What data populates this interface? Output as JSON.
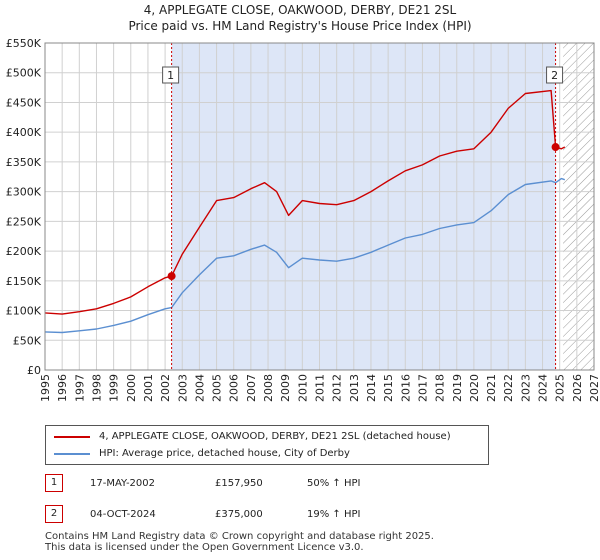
{
  "chart_data": {
    "type": "line",
    "title": "4, APPLEGATE CLOSE, OAKWOOD, DERBY, DE21 2SL",
    "subtitle": "Price paid vs. HM Land Registry's House Price Index (HPI)",
    "xlim": [
      1995,
      2027
    ],
    "ylim": [
      0,
      550000
    ],
    "x_ticks": [
      1995,
      1996,
      1997,
      1998,
      1999,
      2000,
      2001,
      2002,
      2003,
      2004,
      2005,
      2006,
      2007,
      2008,
      2009,
      2010,
      2011,
      2012,
      2013,
      2014,
      2015,
      2016,
      2017,
      2018,
      2019,
      2020,
      2021,
      2022,
      2023,
      2024,
      2025,
      2026,
      2027
    ],
    "y_ticks": [
      0,
      50000,
      100000,
      150000,
      200000,
      250000,
      300000,
      350000,
      400000,
      450000,
      500000,
      550000
    ],
    "y_tick_labels": [
      "£0",
      "£50K",
      "£100K",
      "£150K",
      "£200K",
      "£250K",
      "£300K",
      "£350K",
      "£400K",
      "£450K",
      "£500K",
      "£550K"
    ],
    "shaded_region": [
      2002.38,
      2024.76
    ],
    "future_hatch_start": 2025.2,
    "series": [
      {
        "name": "4, APPLEGATE CLOSE, OAKWOOD, DERBY, DE21 2SL (detached house)",
        "color": "#cc0000",
        "points": [
          [
            1995,
            96000
          ],
          [
            1996,
            94000
          ],
          [
            1997,
            98000
          ],
          [
            1998,
            103000
          ],
          [
            1999,
            112000
          ],
          [
            2000,
            123000
          ],
          [
            2001,
            140000
          ],
          [
            2002,
            155000
          ],
          [
            2002.38,
            157950
          ],
          [
            2003,
            195000
          ],
          [
            2004,
            240000
          ],
          [
            2005,
            285000
          ],
          [
            2006,
            290000
          ],
          [
            2007,
            305000
          ],
          [
            2007.8,
            315000
          ],
          [
            2008.5,
            300000
          ],
          [
            2009.2,
            260000
          ],
          [
            2010,
            285000
          ],
          [
            2011,
            280000
          ],
          [
            2012,
            278000
          ],
          [
            2013,
            285000
          ],
          [
            2014,
            300000
          ],
          [
            2015,
            318000
          ],
          [
            2016,
            335000
          ],
          [
            2017,
            345000
          ],
          [
            2018,
            360000
          ],
          [
            2019,
            368000
          ],
          [
            2020,
            372000
          ],
          [
            2021,
            400000
          ],
          [
            2022,
            440000
          ],
          [
            2023,
            465000
          ],
          [
            2024.5,
            470000
          ],
          [
            2024.76,
            375000
          ],
          [
            2025.1,
            372000
          ],
          [
            2025.3,
            375000
          ]
        ]
      },
      {
        "name": "HPI: Average price, detached house, City of Derby",
        "color": "#5b8fd1",
        "points": [
          [
            1995,
            64000
          ],
          [
            1996,
            63000
          ],
          [
            1997,
            66000
          ],
          [
            1998,
            69000
          ],
          [
            1999,
            75000
          ],
          [
            2000,
            82000
          ],
          [
            2001,
            93000
          ],
          [
            2002,
            103000
          ],
          [
            2002.38,
            105000
          ],
          [
            2003,
            130000
          ],
          [
            2004,
            160000
          ],
          [
            2005,
            188000
          ],
          [
            2006,
            192000
          ],
          [
            2007,
            203000
          ],
          [
            2007.8,
            210000
          ],
          [
            2008.5,
            198000
          ],
          [
            2009.2,
            172000
          ],
          [
            2010,
            188000
          ],
          [
            2011,
            185000
          ],
          [
            2012,
            183000
          ],
          [
            2013,
            188000
          ],
          [
            2014,
            198000
          ],
          [
            2015,
            210000
          ],
          [
            2016,
            222000
          ],
          [
            2017,
            228000
          ],
          [
            2018,
            238000
          ],
          [
            2019,
            244000
          ],
          [
            2020,
            248000
          ],
          [
            2021,
            268000
          ],
          [
            2022,
            295000
          ],
          [
            2023,
            312000
          ],
          [
            2024.5,
            318000
          ],
          [
            2024.76,
            315000
          ],
          [
            2025.1,
            322000
          ],
          [
            2025.3,
            320000
          ]
        ]
      }
    ],
    "markers": [
      {
        "label": "1",
        "x": 2002.38,
        "y": 157950
      },
      {
        "label": "2",
        "x": 2024.76,
        "y": 375000
      }
    ]
  },
  "legend": {
    "item1": "4, APPLEGATE CLOSE, OAKWOOD, DERBY, DE21 2SL (detached house)",
    "item2": "HPI: Average price, detached house, City of Derby"
  },
  "annotations": [
    {
      "badge": "1",
      "date": "17-MAY-2002",
      "price": "£157,950",
      "hpi": "50% ↑ HPI"
    },
    {
      "badge": "2",
      "date": "04-OCT-2024",
      "price": "£375,000",
      "hpi": "19% ↑ HPI"
    }
  ],
  "footer": {
    "line1": "Contains HM Land Registry data © Crown copyright and database right 2025.",
    "line2": "This data is licensed under the Open Government Licence v3.0."
  },
  "colors": {
    "red": "#cc0000",
    "blue": "#5b8fd1",
    "shade": "#dde6f7",
    "grid": "#d0d0d0"
  }
}
